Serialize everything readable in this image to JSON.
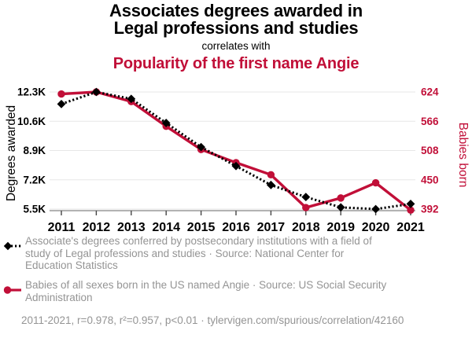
{
  "header": {
    "title_line1": "Associates degrees awarded in",
    "title_line2": "Legal professions and studies",
    "connector": "correlates with",
    "subtitle": "Popularity of the first name Angie"
  },
  "colors": {
    "accent_red": "#c10f38",
    "series_black": "#000000",
    "legend_gray": "#949494",
    "gridline": "#e7e7e7",
    "axis_line": "#9a9a9a",
    "tick_mark": "#444444"
  },
  "chart_data": {
    "type": "line",
    "x": [
      2011,
      2012,
      2013,
      2014,
      2015,
      2016,
      2017,
      2018,
      2019,
      2020,
      2021
    ],
    "x_ticks": [
      "2011",
      "2012",
      "2013",
      "2014",
      "2015",
      "2016",
      "2017",
      "2018",
      "2019",
      "2020",
      "2021"
    ],
    "series": [
      {
        "name": "Associates degrees awarded in Legal professions and studies",
        "axis": "left",
        "style": "dotted-black-diamond",
        "values": [
          11600,
          12300,
          11900,
          10500,
          9100,
          8000,
          6900,
          6200,
          5600,
          5500,
          5800
        ]
      },
      {
        "name": "Popularity of the first name Angie",
        "axis": "right",
        "style": "solid-red-circle",
        "values": [
          620,
          624,
          605,
          556,
          510,
          484,
          460,
          395,
          414,
          444,
          390
        ]
      }
    ],
    "left_axis": {
      "label": "Degrees awarded",
      "ticks": [
        "12.3K",
        "10.6K",
        "8.9K",
        "7.2K",
        "5.5K"
      ],
      "tick_values": [
        12300,
        10600,
        8900,
        7200,
        5500
      ],
      "range": [
        5500,
        12300
      ]
    },
    "right_axis": {
      "label": "Babies born",
      "ticks": [
        "624",
        "566",
        "508",
        "450",
        "392"
      ],
      "tick_values": [
        624,
        566,
        508,
        450,
        392
      ],
      "range": [
        392,
        624
      ]
    },
    "grid": "horizontal",
    "legend_position": "bottom"
  },
  "legend": {
    "items": [
      {
        "icon": "diamond-dotted-line-icon",
        "lines": [
          "Associate's degrees conferred by postsecondary institutions with a field of",
          "study of Legal professions and studies · Source: National Center for",
          "Education Statistics"
        ]
      },
      {
        "icon": "circle-solid-line-icon",
        "lines": [
          "Babies of all sexes born in the US named Angie · Source: US Social Security",
          "Administration"
        ]
      }
    ]
  },
  "footer": {
    "text": "2011-2021, r=0.978, r²=0.957, p<0.01 · tylervigen.com/spurious/correlation/42160"
  }
}
